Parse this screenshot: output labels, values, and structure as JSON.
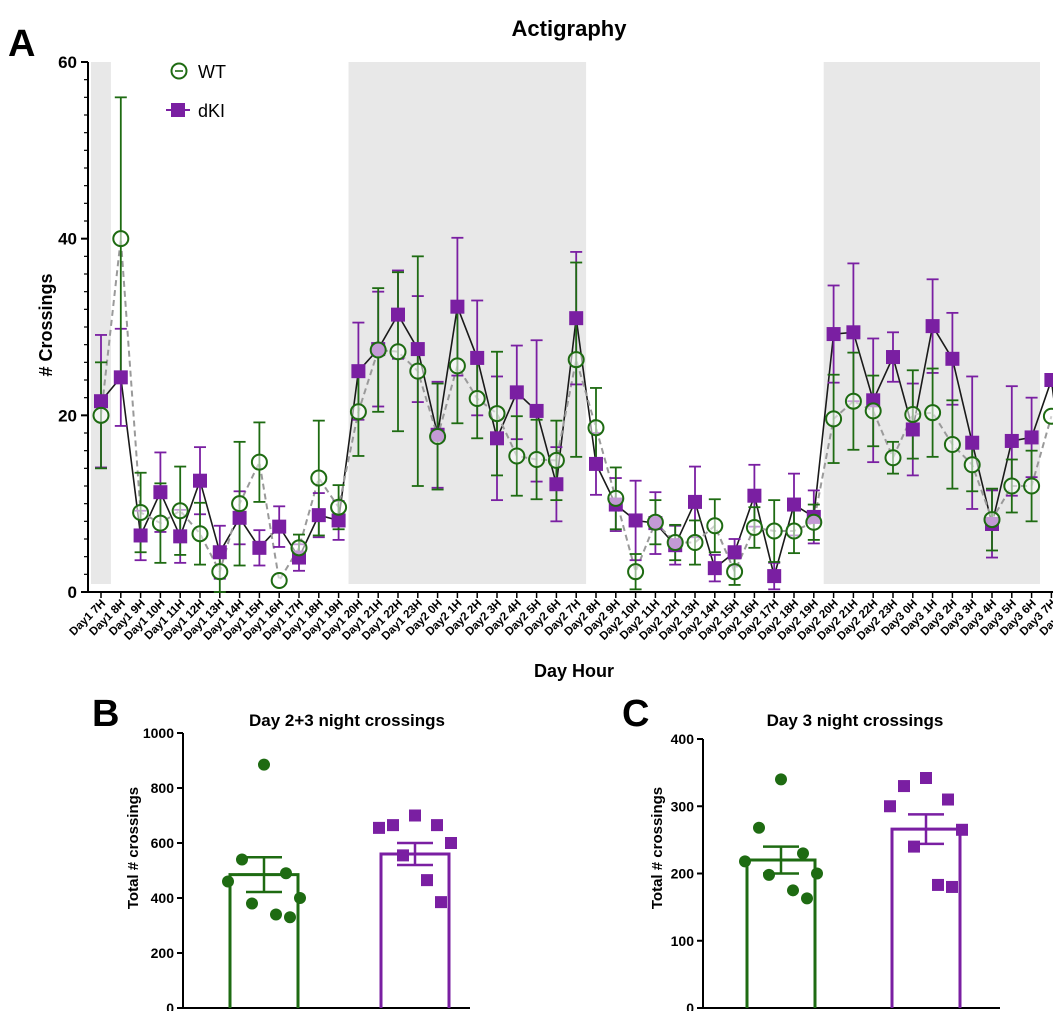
{
  "figure": {
    "panel_letters": [
      "A",
      "B",
      "C"
    ]
  },
  "colors": {
    "wt": "#1e6b12",
    "dki": "#7a1fa2",
    "night_shade": "#e8e8e8",
    "wt_line": "#9a9a9a",
    "dki_line": "#1a1a1a"
  },
  "icons": {
    "wt_marker": "open-circle-with-dash",
    "dki_marker": "filled-square"
  },
  "chart_data": [
    {
      "panel": "A",
      "type": "line",
      "title": "Actigraphy",
      "xlabel": "Day Hour",
      "ylabel": "# Crossings",
      "ylim": [
        0,
        60
      ],
      "yticks": [
        0,
        20,
        40,
        60
      ],
      "grid": false,
      "legend_placement": "top-left",
      "categories": [
        "Day1 7H",
        "Day1 8H",
        "Day1 9H",
        "Day1 10H",
        "Day1 11H",
        "Day1 12H",
        "Day1 13H",
        "Day1 14H",
        "Day1 15H",
        "Day1 16H",
        "Day1 17H",
        "Day1 18H",
        "Day1 19H",
        "Day1 20H",
        "Day1 21H",
        "Day1 22H",
        "Day1 23H",
        "Day2 0H",
        "Day2 1H",
        "Day2 2H",
        "Day2 3H",
        "Day2 4H",
        "Day2 5H",
        "Day2 6H",
        "Day2 7H",
        "Day2 8H",
        "Day2 9H",
        "Day2 10H",
        "Day2 11H",
        "Day2 12H",
        "Day2 13H",
        "Day2 14H",
        "Day2 15H",
        "Day2 16H",
        "Day2 17H",
        "Day2 18H",
        "Day2 19H",
        "Day2 20H",
        "Day2 21H",
        "Day2 22H",
        "Day2 23H",
        "Day3 0H",
        "Day3 1H",
        "Day3 2H",
        "Day3 3H",
        "Day3 4H",
        "Day3 5H",
        "Day3 6H",
        "Day3 7H",
        "Day3 8H"
      ],
      "night_periods": [
        [
          "Day1 7H",
          "Day1 7H"
        ],
        [
          "Day1 20H",
          "Day2 7H"
        ],
        [
          "Day2 20H",
          "Day3 8H"
        ]
      ],
      "series": [
        {
          "name": "WT",
          "marker": "open-circle",
          "line_style": "dashed",
          "values": [
            20,
            40,
            9,
            7.8,
            9.2,
            6.6,
            2.3,
            10,
            14.7,
            1.3,
            5,
            12.9,
            9.6,
            20.4,
            27.4,
            27.2,
            25,
            17.6,
            25.6,
            21.9,
            20.2,
            15.4,
            15,
            14.9,
            26.3,
            18.6,
            10.6,
            2.3,
            7.9,
            5.6,
            5.6,
            7.5,
            2.3,
            7.3,
            6.9,
            6.9,
            7.9,
            19.6,
            21.6,
            20.5,
            15.2,
            20.1,
            20.3,
            16.7,
            14.4,
            8.2,
            12,
            12,
            19.9,
            null
          ],
          "errors": [
            6,
            16,
            4.5,
            4.5,
            5,
            3.5,
            2.3,
            7,
            4.5,
            null,
            1.5,
            6.5,
            2.5,
            5,
            7,
            9,
            13,
            6,
            6.5,
            4.5,
            7,
            4.5,
            4.5,
            4.5,
            11,
            4.5,
            3.5,
            2,
            2.5,
            2,
            2.5,
            3,
            1.5,
            2.3,
            3.5,
            2.5,
            2,
            5,
            5.5,
            4,
            1.8,
            5,
            5,
            5,
            3,
            3.5,
            3,
            4,
            null,
            null
          ]
        },
        {
          "name": "dKI",
          "marker": "filled-square",
          "line_style": "solid",
          "values": [
            21.6,
            24.3,
            6.4,
            11.3,
            6.3,
            12.6,
            4.5,
            8.4,
            5,
            7.4,
            3.9,
            8.7,
            8.1,
            25,
            27.5,
            31.4,
            27.5,
            17.8,
            32.3,
            26.5,
            17.4,
            22.6,
            20.5,
            12.2,
            31,
            14.5,
            9.9,
            8.1,
            7.8,
            5.3,
            10.2,
            2.7,
            4.5,
            10.9,
            1.8,
            9.9,
            8.5,
            29.2,
            29.4,
            21.7,
            26.6,
            18.4,
            30.1,
            26.4,
            16.9,
            7.7,
            17.1,
            17.5,
            24,
            6.5
          ],
          "errors": [
            7.5,
            5.5,
            2.8,
            4.5,
            3,
            3.8,
            3,
            3,
            2,
            2.3,
            1.5,
            2.5,
            2.2,
            5.5,
            6.5,
            5,
            6,
            6,
            7.8,
            6.5,
            7,
            5.3,
            8,
            4.2,
            7.5,
            3.5,
            3,
            4.5,
            3.5,
            2.2,
            4,
            1.5,
            1.5,
            3.5,
            1.5,
            3.5,
            3,
            5.5,
            7.8,
            7,
            2.8,
            5.2,
            5.3,
            5.2,
            7.5,
            3.8,
            6.2,
            4.5,
            null,
            null
          ]
        }
      ]
    },
    {
      "panel": "B",
      "type": "bar",
      "title": "Day 2+3 night crossings",
      "xlabel": "",
      "ylabel": "Total # crossings",
      "ylim": [
        0,
        1000
      ],
      "yticks": [
        0,
        200,
        400,
        600,
        800,
        1000
      ],
      "categories": [
        "WT",
        "dKI"
      ],
      "means": [
        485,
        560
      ],
      "sems": [
        63,
        40
      ],
      "points": [
        [
          885,
          540,
          490,
          460,
          400,
          380,
          340,
          330
        ],
        [
          700,
          665,
          665,
          655,
          600,
          555,
          465,
          385
        ]
      ]
    },
    {
      "panel": "C",
      "type": "bar",
      "title": "Day 3 night crossings",
      "xlabel": "",
      "ylabel": "Total # crossings",
      "ylim": [
        0,
        400
      ],
      "yticks": [
        0,
        100,
        200,
        300,
        400
      ],
      "categories": [
        "WT",
        "dKI"
      ],
      "means": [
        220,
        266
      ],
      "sems": [
        20,
        22
      ],
      "points": [
        [
          340,
          268,
          230,
          218,
          200,
          198,
          175,
          163
        ],
        [
          342,
          330,
          310,
          300,
          265,
          240,
          183,
          180
        ]
      ]
    }
  ]
}
